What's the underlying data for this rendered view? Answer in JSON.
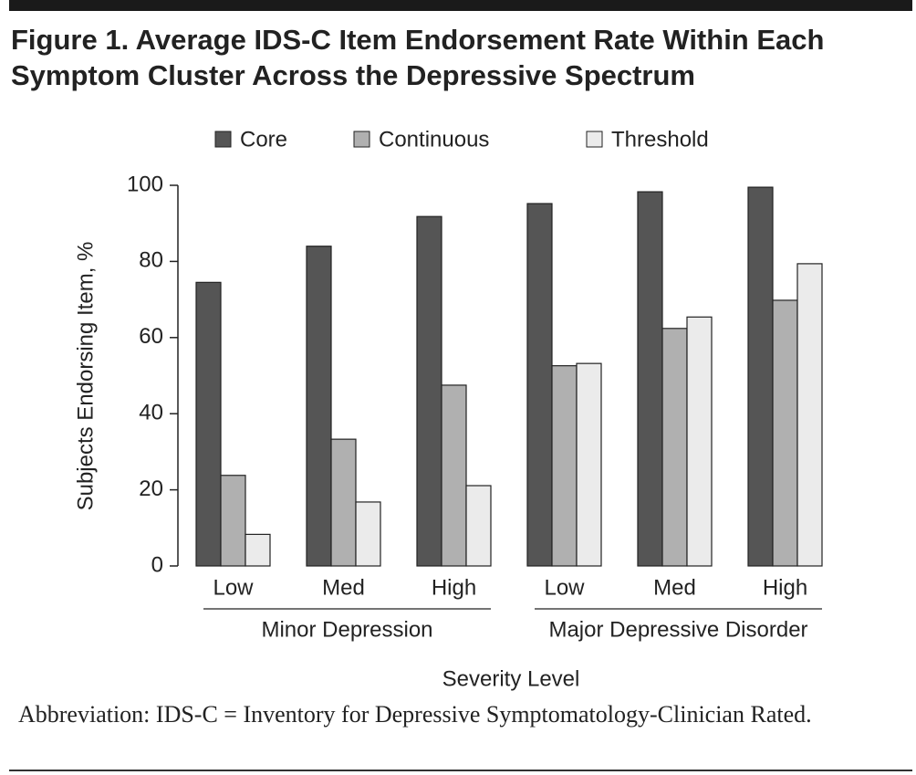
{
  "chart_data": {
    "type": "bar",
    "title": "Figure 1. Average IDS-C Item Endorsement Rate Within Each Symptom Cluster Across the Depressive Spectrum",
    "groups": [
      {
        "name": "Minor Depression",
        "categories": [
          "Low",
          "Med",
          "High"
        ]
      },
      {
        "name": "Major Depressive Disorder",
        "categories": [
          "Low",
          "Med",
          "High"
        ]
      }
    ],
    "x_label": "Severity Level",
    "y_label": "Subjects Endorsing Item, %",
    "series": [
      {
        "name": "Core",
        "color": "#555555",
        "values": [
          74.5,
          84,
          91.8,
          95.2,
          98.3,
          99.5
        ]
      },
      {
        "name": "Continuous",
        "color": "#b0b0b0",
        "values": [
          23.8,
          33.3,
          47.5,
          52.6,
          62.4,
          69.8
        ]
      },
      {
        "name": "Threshold",
        "color": "#ebebeb",
        "values": [
          8.3,
          16.8,
          21.1,
          53.2,
          65.4,
          79.4
        ]
      }
    ],
    "ylim": [
      0,
      100
    ],
    "yticks": [
      0,
      20,
      40,
      60,
      80,
      100
    ],
    "note": "Abbreviation: IDS-C = Inventory for Depressive Symptomatology-Clinician Rated."
  }
}
